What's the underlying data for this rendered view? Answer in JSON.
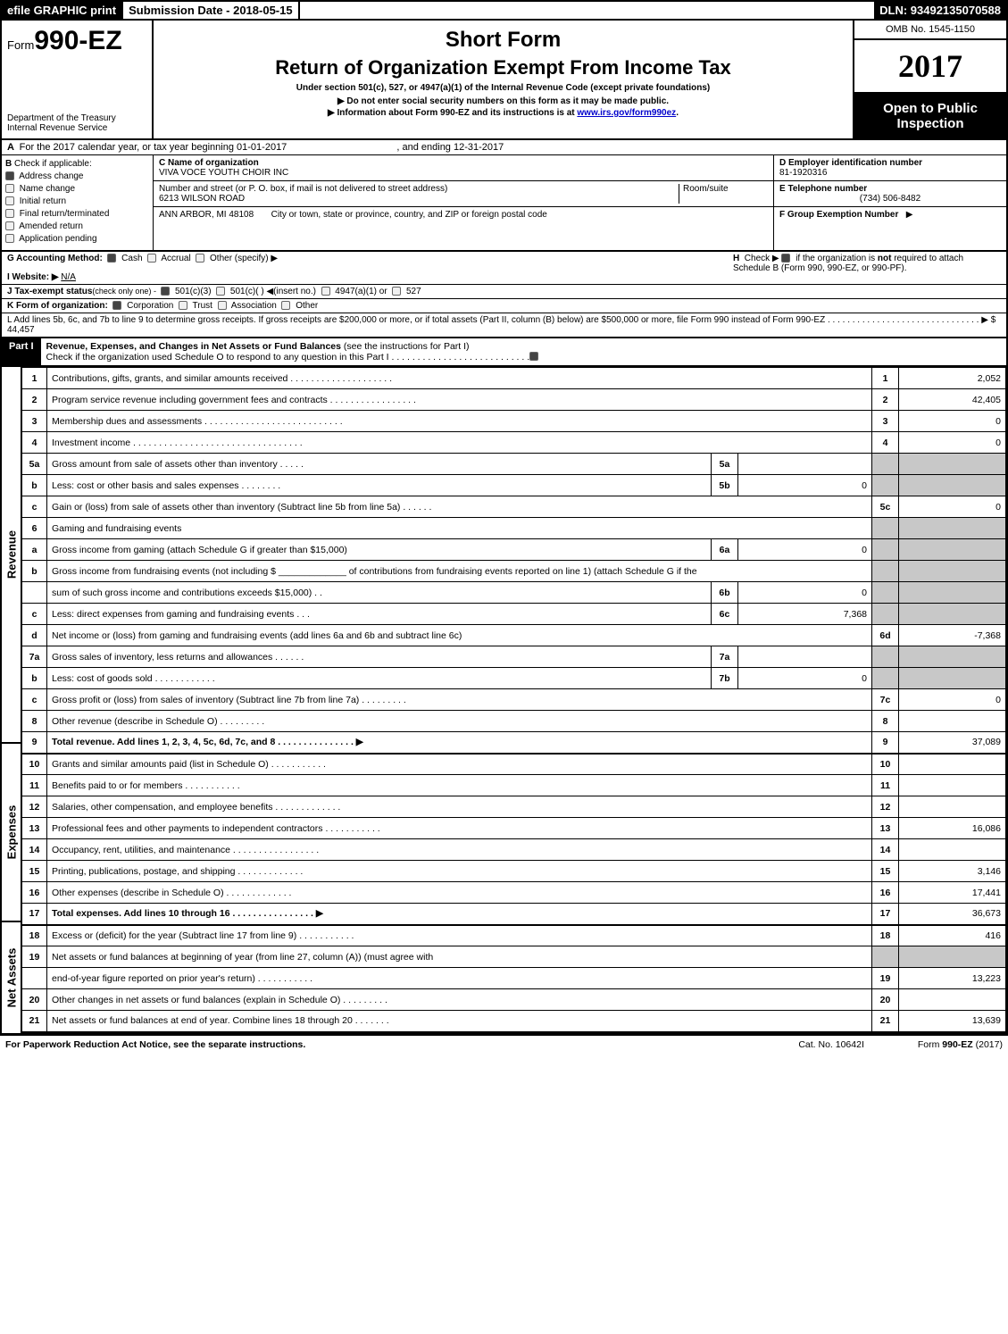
{
  "top": {
    "efile": "efile GRAPHIC print",
    "submission_label": "Submission Date - 2018-05-15",
    "dln": "DLN: 93492135070588"
  },
  "header": {
    "form_prefix": "Form",
    "form_number": "990-EZ",
    "dept1": "Department of the Treasury",
    "dept2": "Internal Revenue Service",
    "short_form": "Short Form",
    "title": "Return of Organization Exempt From Income Tax",
    "subtitle": "Under section 501(c), 527, or 4947(a)(1) of the Internal Revenue Code (except private foundations)",
    "arrow1": "▶ Do not enter social security numbers on this form as it may be made public.",
    "arrow2_pre": "▶ Information about Form 990-EZ and its instructions is at ",
    "arrow2_link": "www.irs.gov/form990ez",
    "arrow2_post": ".",
    "omb": "OMB No. 1545-1150",
    "year": "2017",
    "open1": "Open to Public",
    "open2": "Inspection"
  },
  "sectionA": {
    "A_text": "For the 2017 calendar year, or tax year beginning 01-01-2017",
    "A_end": ", and ending 12-31-2017",
    "B_label": "Check if applicable:",
    "B_items": [
      "Address change",
      "Name change",
      "Initial return",
      "Final return/terminated",
      "Amended return",
      "Application pending"
    ],
    "C_label": "C Name of organization",
    "C_name": "VIVA VOCE YOUTH CHOIR INC",
    "C_street_label": "Number and street (or P. O. box, if mail is not delivered to street address)",
    "C_street": "6213 WILSON ROAD",
    "C_room_label": "Room/suite",
    "C_city_label": "City or town, state or province, country, and ZIP or foreign postal code",
    "C_city": "ANN ARBOR, MI  48108",
    "D_label": "D Employer identification number",
    "D_val": "81-1920316",
    "E_label": "E Telephone number",
    "E_val": "(734) 506-8482",
    "F_label": "F Group Exemption Number",
    "F_arrow": "▶"
  },
  "sectionG": {
    "G_label": "G Accounting Method:",
    "G_opts": [
      "Cash",
      "Accrual",
      "Other (specify) ▶"
    ],
    "H_text": "Check ▶",
    "H_rest1": "if the organization is ",
    "H_not": "not",
    "H_rest2": " required to attach Schedule B (Form 990, 990-EZ, or 990-PF).",
    "I_label": "I Website: ▶",
    "I_val": "N/A",
    "J_label": "J Tax-exempt status",
    "J_sub": "(check only one) - ",
    "J_opts": [
      "501(c)(3)",
      "501(c)(  ) ◀(insert no.)",
      "4947(a)(1) or",
      "527"
    ],
    "K_label": "K Form of organization:",
    "K_opts": [
      "Corporation",
      "Trust",
      "Association",
      "Other"
    ],
    "L_text": "L Add lines 5b, 6c, and 7b to line 9 to determine gross receipts. If gross receipts are $200,000 or more, or if total assets (Part II, column (B) below) are $500,000 or more, file Form 990 instead of Form 990-EZ  .  .  .  .  .  .  .  .  .  .  .  .  .  .  .  .  .  .  .  .  .  .  .  .  .  .  .  .  .  .  .  ▶",
    "L_val": "$ 44,457"
  },
  "part1": {
    "label": "Part I",
    "title": "Revenue, Expenses, and Changes in Net Assets or Fund Balances",
    "title_note": "(see the instructions for Part I)",
    "check_line": "Check if the organization used Schedule O to respond to any question in this Part I .  .  .  .  .  .  .  .  .  .  .  .  .  .  .  .  .  .  .  .  .  .  .  .  .  .  ."
  },
  "sections": {
    "revenue": "Revenue",
    "expenses": "Expenses",
    "netassets": "Net Assets"
  },
  "lines": [
    {
      "n": "1",
      "lbl": "Contributions, gifts, grants, and similar amounts received  .  .  .  .  .  .  .  .  .  .  .  .  .  .  .  .  .  .  .  .",
      "rn": "1",
      "rv": "2,052"
    },
    {
      "n": "2",
      "lbl": "Program service revenue including government fees and contracts  .  .  .  .  .  .  .  .  .  .  .  .  .  .  .  .  .",
      "rn": "2",
      "rv": "42,405"
    },
    {
      "n": "3",
      "lbl": "Membership dues and assessments  .  .  .  .  .  .  .  .  .  .  .  .  .  .  .  .  .  .  .  .  .  .  .  .  .  .  .",
      "rn": "3",
      "rv": "0"
    },
    {
      "n": "4",
      "lbl": "Investment income  .  .  .  .  .  .  .  .  .  .  .  .  .  .  .  .  .  .  .  .  .  .  .  .  .  .  .  .  .  .  .  .  .",
      "rn": "4",
      "rv": "0"
    },
    {
      "n": "5a",
      "lbl": "Gross amount from sale of assets other than inventory  .  .  .  .  .",
      "mn": "5a",
      "mv": "",
      "shade": true
    },
    {
      "n": "b",
      "lbl": "Less: cost or other basis and sales expenses  .  .  .  .  .  .  .  .",
      "mn": "5b",
      "mv": "0",
      "shade": true
    },
    {
      "n": "c",
      "lbl": "Gain or (loss) from sale of assets other than inventory (Subtract line 5b from line 5a)             .   .   .   .   .   .",
      "rn": "5c",
      "rv": "0"
    },
    {
      "n": "6",
      "lbl": "Gaming and fundraising events",
      "shade": true
    },
    {
      "n": "a",
      "lbl": "Gross income from gaming (attach Schedule G if greater than $15,000)",
      "mn": "6a",
      "mv": "0",
      "shade": true
    },
    {
      "n": "b",
      "lbl": "Gross income from fundraising events (not including $ _____________ of contributions from fundraising events reported on line 1) (attach Schedule G if the",
      "shade": true
    },
    {
      "n": "",
      "lbl": "sum of such gross income and contributions exceeds $15,000)         .   .",
      "mn": "6b",
      "mv": "0",
      "shade": true
    },
    {
      "n": "c",
      "lbl": "Less: direct expenses from gaming and fundraising events         .   .   .",
      "mn": "6c",
      "mv": "7,368",
      "shade": true
    },
    {
      "n": "d",
      "lbl": "Net income or (loss) from gaming and fundraising events (add lines 6a and 6b and subtract line 6c)",
      "rn": "6d",
      "rv": "-7,368"
    },
    {
      "n": "7a",
      "lbl": "Gross sales of inventory, less returns and allowances           .   .   .   .   .   .",
      "mn": "7a",
      "mv": "",
      "shade": true
    },
    {
      "n": "b",
      "lbl": "Less: cost of goods sold                          .  .  .  .  .  .  .  .  .  .  .  .",
      "mn": "7b",
      "mv": "0",
      "shade": true
    },
    {
      "n": "c",
      "lbl": "Gross profit or (loss) from sales of inventory (Subtract line 7b from line 7a)          .   .   .   .   .   .   .   .   .",
      "rn": "7c",
      "rv": "0"
    },
    {
      "n": "8",
      "lbl": "Other revenue (describe in Schedule O)                          .   .   .   .   .   .   .   .   .",
      "rn": "8",
      "rv": ""
    },
    {
      "n": "9",
      "lbl": "Total revenue. Add lines 1, 2, 3, 4, 5c, 6d, 7c, and 8        .   .   .   .   .   .   .   .   .   .   .   .   .   .   .  ▶",
      "rn": "9",
      "rv": "37,089",
      "bold": true,
      "thick": true
    },
    {
      "n": "10",
      "lbl": "Grants and similar amounts paid (list in Schedule O)                 .   .   .   .   .   .   .   .   .   .   .",
      "rn": "10",
      "rv": ""
    },
    {
      "n": "11",
      "lbl": "Benefits paid to or for members                            .   .   .   .   .   .   .   .   .   .   .",
      "rn": "11",
      "rv": ""
    },
    {
      "n": "12",
      "lbl": "Salaries, other compensation, and employee benefits              .   .   .   .   .   .   .   .   .   .   .   .   .",
      "rn": "12",
      "rv": ""
    },
    {
      "n": "13",
      "lbl": "Professional fees and other payments to independent contractors          .   .   .   .   .   .   .   .   .   .   .",
      "rn": "13",
      "rv": "16,086"
    },
    {
      "n": "14",
      "lbl": "Occupancy, rent, utilities, and maintenance           .   .   .   .   .   .   .   .   .   .   .   .   .   .   .   .   .",
      "rn": "14",
      "rv": ""
    },
    {
      "n": "15",
      "lbl": "Printing, publications, postage, and shipping                   .   .   .   .   .   .   .   .   .   .   .   .   .",
      "rn": "15",
      "rv": "3,146"
    },
    {
      "n": "16",
      "lbl": "Other expenses (describe in Schedule O)                    .   .   .   .   .   .   .   .   .   .   .   .   .",
      "rn": "16",
      "rv": "17,441"
    },
    {
      "n": "17",
      "lbl": "Total expenses. Add lines 10 through 16               .   .   .   .   .   .   .   .   .   .   .   .   .   .   .   .  ▶",
      "rn": "17",
      "rv": "36,673",
      "bold": true,
      "thick": true
    },
    {
      "n": "18",
      "lbl": "Excess or (deficit) for the year (Subtract line 17 from line 9)               .   .   .   .   .   .   .   .   .   .   .",
      "rn": "18",
      "rv": "416"
    },
    {
      "n": "19",
      "lbl": "Net assets or fund balances at beginning of year (from line 27, column (A)) (must agree with",
      "shade": true
    },
    {
      "n": "",
      "lbl": "end-of-year figure reported on prior year's return)                 .   .   .   .   .   .   .   .   .   .   .",
      "rn": "19",
      "rv": "13,223"
    },
    {
      "n": "20",
      "lbl": "Other changes in net assets or fund balances (explain in Schedule O)          .   .   .   .   .   .   .   .   .",
      "rn": "20",
      "rv": ""
    },
    {
      "n": "21",
      "lbl": "Net assets or fund balances at end of year. Combine lines 18 through 20               .   .   .   .   .   .   .",
      "rn": "21",
      "rv": "13,639",
      "thick": true
    }
  ],
  "footer": {
    "left": "For Paperwork Reduction Act Notice, see the separate instructions.",
    "center": "Cat. No. 10642I",
    "right_pre": "Form ",
    "right_bold": "990-EZ",
    "right_post": " (2017)"
  },
  "colors": {
    "black": "#000000",
    "white": "#ffffff",
    "shade": "#c8c8c8",
    "link": "#0000cc"
  }
}
